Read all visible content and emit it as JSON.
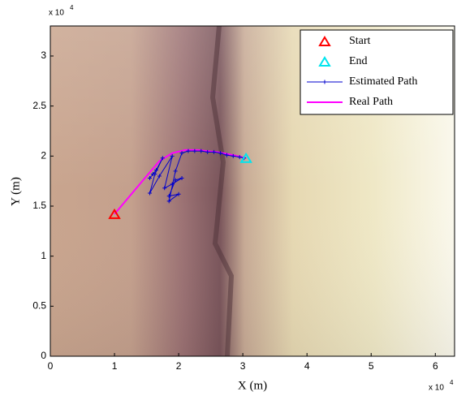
{
  "chart_data": {
    "type": "line",
    "xlabel": "X (m)",
    "ylabel": "Y (m)",
    "x_multiplier": "x 10",
    "x_multiplier_exp": "4",
    "y_multiplier": "x 10",
    "y_multiplier_exp": "4",
    "xlim": [
      0,
      63000
    ],
    "ylim": [
      0,
      33000
    ],
    "xticks": [
      0,
      {
        "value": 10000,
        "label": "1"
      },
      {
        "value": 20000,
        "label": "2"
      },
      {
        "value": 30000,
        "label": "3"
      },
      {
        "value": 40000,
        "label": "4"
      },
      {
        "value": 50000,
        "label": "5"
      },
      {
        "value": 60000,
        "label": "6"
      }
    ],
    "yticks": [
      0,
      {
        "value": 5000,
        "label": "0.5"
      },
      {
        "value": 10000,
        "label": "1"
      },
      {
        "value": 15000,
        "label": "1.5"
      },
      {
        "value": 20000,
        "label": "2"
      },
      {
        "value": 25000,
        "label": "2.5"
      },
      {
        "value": 30000,
        "label": "3"
      }
    ],
    "legend": "upper right",
    "series": [
      {
        "name": "Start",
        "color": "#ff0000",
        "marker": "triangle",
        "x": [
          10000
        ],
        "values": [
          14200
        ]
      },
      {
        "name": "End",
        "color": "#00e5ee",
        "marker": "triangle",
        "x": [
          30500
        ],
        "values": [
          19800
        ]
      },
      {
        "name": "Estimated Path",
        "color": "#0000cc",
        "marker": "plus",
        "x": [
          15500,
          16000,
          16500,
          17500,
          16300,
          15500,
          17000,
          19000,
          17800,
          19000,
          20500,
          19500,
          18500,
          20000,
          18500,
          19500,
          20500,
          21500,
          22500,
          23500,
          24500,
          25500,
          26500,
          27500,
          28500,
          29500,
          30200
        ],
        "values": [
          17800,
          18200,
          18600,
          19800,
          18200,
          16300,
          18000,
          20000,
          16800,
          17200,
          17800,
          17600,
          16000,
          16200,
          15500,
          18500,
          20300,
          20500,
          20500,
          20500,
          20400,
          20400,
          20300,
          20100,
          20000,
          19900,
          19800
        ]
      },
      {
        "name": "Real Path",
        "color": "#ff00ff",
        "marker": "none",
        "x": [
          10000,
          15000,
          17000,
          19000,
          21000,
          23000,
          26000,
          28500,
          30500
        ],
        "values": [
          14200,
          18000,
          19500,
          20300,
          20600,
          20600,
          20400,
          20100,
          19800
        ]
      }
    ]
  }
}
